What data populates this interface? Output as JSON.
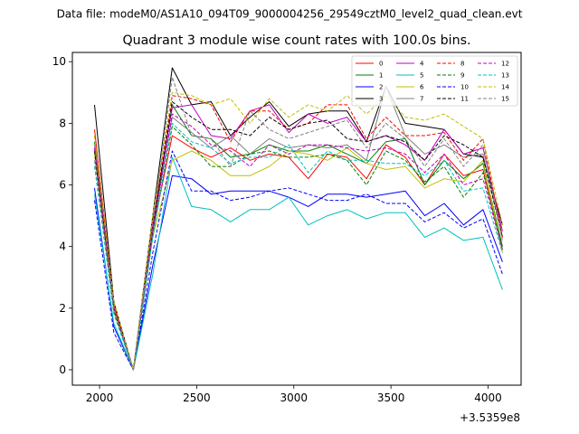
{
  "chart_data": {
    "type": "line",
    "suptitle": "Data file: modeM0/AS1A10_094T09_9000004256_29549cztM0_level2_quad_clean.evt",
    "title": "Quadrant 3 module wise count rates with 100.0s bins.",
    "xlabel": "",
    "ylabel": "",
    "x_offset_label": "+3.5359e8",
    "xlim": [
      1860,
      4170
    ],
    "ylim": [
      -0.5,
      10.3
    ],
    "x_ticks": [
      2000,
      2500,
      3000,
      3500,
      4000
    ],
    "y_ticks": [
      0,
      2,
      4,
      6,
      8,
      10
    ],
    "x": [
      1974,
      2074,
      2174,
      2274,
      2374,
      2474,
      2574,
      2674,
      2774,
      2874,
      2974,
      3074,
      3174,
      3274,
      3374,
      3474,
      3574,
      3674,
      3774,
      3874,
      3974,
      4074
    ],
    "legend_location": "upper right",
    "series": [
      {
        "name": "0",
        "color": "#ff0000",
        "dash": "solid",
        "values": [
          7.8,
          2.1,
          0.0,
          4.5,
          7.6,
          7.2,
          6.9,
          7.2,
          6.8,
          7.0,
          6.9,
          6.2,
          7.0,
          6.9,
          6.2,
          7.3,
          6.9,
          6.0,
          7.0,
          6.3,
          6.5,
          3.9
        ]
      },
      {
        "name": "1",
        "color": "#008000",
        "dash": "solid",
        "values": [
          7.4,
          2.0,
          0.0,
          4.6,
          8.6,
          7.6,
          7.5,
          6.9,
          7.0,
          7.3,
          7.1,
          7.1,
          7.3,
          7.0,
          6.7,
          7.4,
          7.5,
          6.0,
          6.8,
          6.2,
          6.7,
          4.0
        ]
      },
      {
        "name": "2",
        "color": "#0000ff",
        "dash": "solid",
        "values": [
          5.9,
          1.4,
          0.0,
          3.4,
          6.3,
          6.2,
          5.7,
          5.8,
          5.8,
          5.8,
          5.6,
          5.3,
          5.7,
          5.7,
          5.6,
          5.7,
          5.8,
          5.0,
          5.4,
          4.7,
          5.2,
          3.5
        ]
      },
      {
        "name": "3",
        "color": "#000000",
        "dash": "solid",
        "values": [
          8.6,
          2.2,
          0.0,
          5.0,
          9.8,
          8.6,
          8.7,
          7.6,
          8.2,
          8.7,
          7.9,
          8.3,
          8.4,
          8.4,
          7.4,
          9.2,
          8.0,
          7.9,
          7.8,
          7.0,
          6.9,
          4.7
        ]
      },
      {
        "name": "4",
        "color": "#c000c0",
        "dash": "solid",
        "values": [
          7.2,
          2.0,
          0.0,
          4.8,
          8.5,
          8.6,
          7.6,
          7.5,
          8.4,
          8.6,
          7.7,
          8.3,
          8.0,
          8.2,
          7.4,
          7.6,
          7.3,
          6.8,
          7.8,
          7.0,
          7.2,
          4.5
        ]
      },
      {
        "name": "5",
        "color": "#00c0c0",
        "dash": "solid",
        "values": [
          5.7,
          1.5,
          0.0,
          3.1,
          6.9,
          5.3,
          5.2,
          4.8,
          5.2,
          5.2,
          5.6,
          4.7,
          5.0,
          5.2,
          4.9,
          5.1,
          5.1,
          4.3,
          4.6,
          4.2,
          4.3,
          2.6
        ]
      },
      {
        "name": "6",
        "color": "#c0c000",
        "dash": "solid",
        "values": [
          7.0,
          1.9,
          0.0,
          4.3,
          6.8,
          7.1,
          6.8,
          6.3,
          6.3,
          6.6,
          7.1,
          7.0,
          6.8,
          7.2,
          6.7,
          6.5,
          6.6,
          5.9,
          6.2,
          6.1,
          6.8,
          3.8
        ]
      },
      {
        "name": "7",
        "color": "#808080",
        "dash": "solid",
        "values": [
          7.3,
          2.0,
          0.0,
          4.6,
          8.2,
          7.7,
          7.2,
          7.6,
          7.0,
          7.5,
          7.2,
          7.3,
          7.2,
          7.3,
          6.8,
          9.2,
          7.6,
          7.0,
          7.3,
          6.9,
          7.0,
          4.3
        ]
      },
      {
        "name": "8",
        "color": "#ff0000",
        "dash": "dashed",
        "values": [
          7.6,
          2.1,
          0.0,
          4.7,
          8.9,
          8.8,
          8.6,
          7.4,
          8.4,
          8.4,
          7.8,
          8.0,
          8.6,
          8.6,
          7.5,
          8.2,
          7.6,
          7.6,
          7.7,
          6.8,
          7.5,
          4.3
        ]
      },
      {
        "name": "9",
        "color": "#008000",
        "dash": "dashed",
        "values": [
          7.1,
          1.9,
          0.0,
          4.4,
          7.9,
          7.3,
          6.6,
          6.6,
          7.0,
          7.1,
          6.9,
          6.9,
          7.0,
          6.8,
          6.0,
          7.1,
          6.8,
          6.1,
          6.6,
          5.6,
          6.4,
          3.9
        ]
      },
      {
        "name": "10",
        "color": "#0000ff",
        "dash": "dashed",
        "values": [
          5.5,
          1.2,
          0.0,
          3.8,
          7.1,
          5.8,
          5.8,
          5.5,
          5.6,
          5.8,
          5.9,
          5.7,
          5.5,
          5.5,
          5.7,
          5.4,
          5.4,
          4.8,
          5.1,
          4.6,
          4.9,
          3.1
        ]
      },
      {
        "name": "11",
        "color": "#000000",
        "dash": "dashed",
        "values": [
          7.1,
          2.0,
          0.0,
          4.6,
          8.7,
          8.2,
          7.8,
          7.8,
          7.6,
          8.2,
          7.8,
          8.0,
          8.1,
          7.5,
          7.4,
          7.6,
          7.4,
          6.8,
          7.6,
          7.3,
          6.9,
          4.3
        ]
      },
      {
        "name": "12",
        "color": "#c000c0",
        "dash": "dashed",
        "values": [
          7.2,
          2.0,
          0.0,
          4.5,
          8.3,
          7.9,
          7.3,
          7.1,
          6.6,
          7.3,
          7.0,
          7.3,
          7.3,
          7.2,
          7.1,
          7.2,
          7.0,
          6.4,
          7.0,
          6.0,
          6.2,
          3.9
        ]
      },
      {
        "name": "13",
        "color": "#00c0c0",
        "dash": "dashed",
        "values": [
          6.6,
          1.8,
          0.0,
          4.3,
          8.0,
          7.4,
          7.2,
          6.7,
          6.9,
          6.9,
          7.3,
          6.4,
          7.1,
          6.8,
          6.8,
          6.7,
          6.7,
          6.3,
          6.8,
          5.8,
          5.9,
          3.8
        ]
      },
      {
        "name": "14",
        "color": "#c0c000",
        "dash": "dashed",
        "values": [
          7.6,
          2.2,
          0.0,
          5.0,
          9.0,
          8.9,
          8.6,
          8.8,
          8.0,
          8.8,
          8.2,
          8.6,
          8.4,
          8.9,
          8.3,
          8.9,
          8.2,
          8.1,
          8.3,
          7.9,
          7.5,
          4.7
        ]
      },
      {
        "name": "15",
        "color": "#808080",
        "dash": "dashed",
        "values": [
          6.8,
          2.0,
          0.0,
          4.7,
          9.5,
          7.6,
          7.5,
          6.6,
          8.4,
          7.8,
          7.5,
          7.7,
          7.9,
          8.1,
          7.2,
          8.0,
          7.5,
          6.6,
          7.5,
          6.6,
          7.3,
          4.2
        ]
      }
    ]
  }
}
